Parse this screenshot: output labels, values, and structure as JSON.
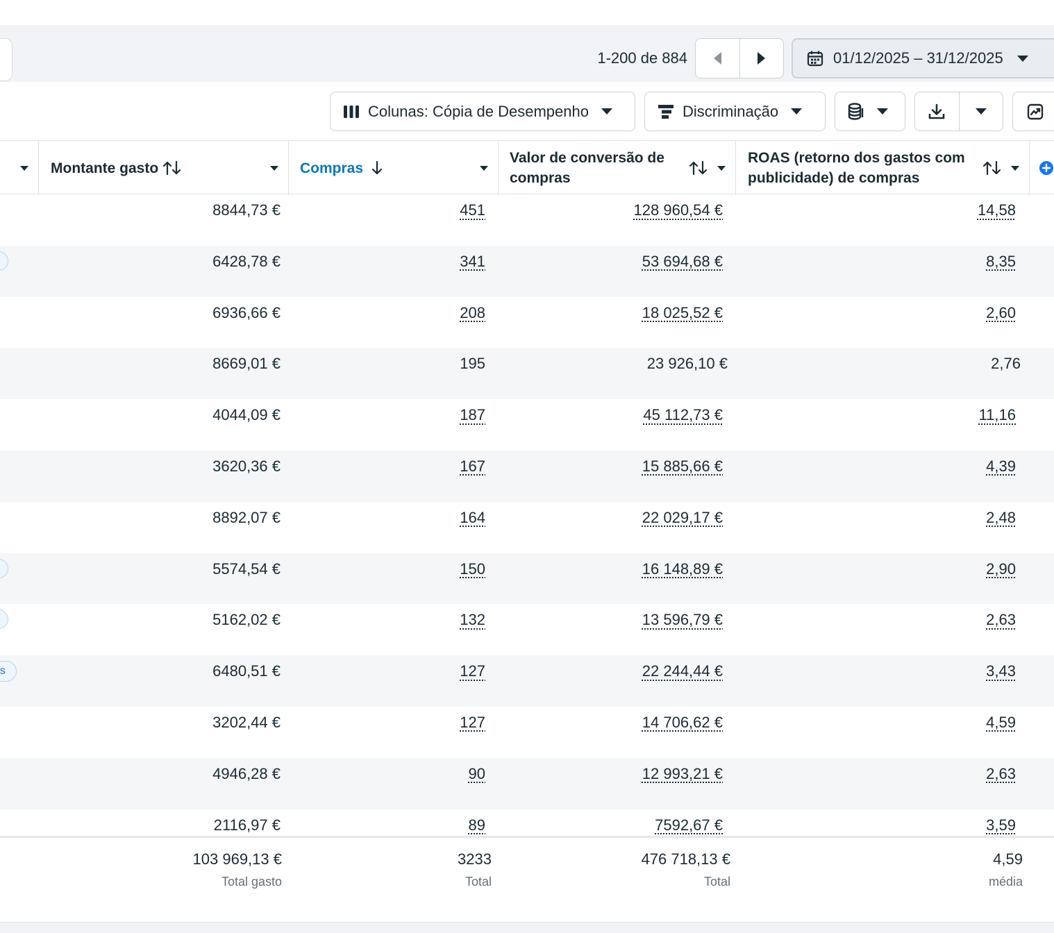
{
  "pager": {
    "range_text": "1-200 de 884"
  },
  "date_range": {
    "label": "01/12/2025 – 31/12/2025"
  },
  "toolbar": {
    "columns_label": "Colunas: Cópia de Desempenho",
    "breakdown_label": "Discriminação"
  },
  "columns": {
    "spend": "Montante gasto",
    "purchases": "Compras",
    "conv_value": "Valor de conversão de compras",
    "roas": "ROAS (retorno dos gastos com publicidade) de compras"
  },
  "accent_color": "#0a78be",
  "rows": [
    {
      "spend": "8844,73 €",
      "purchases": "451",
      "conv_value": "128 960,54 €",
      "roas": "14,58"
    },
    {
      "spend": "6428,78 €",
      "purchases": "341",
      "conv_value": "53 694,68 €",
      "roas": "8,35"
    },
    {
      "spend": "6936,66 €",
      "purchases": "208",
      "conv_value": "18 025,52 €",
      "roas": "2,60"
    },
    {
      "spend": "8669,01 €",
      "purchases": "195",
      "conv_value": "23 926,10 €",
      "roas": "2,76"
    },
    {
      "spend": "4044,09 €",
      "purchases": "187",
      "conv_value": "45 112,73 €",
      "roas": "11,16"
    },
    {
      "spend": "3620,36 €",
      "purchases": "167",
      "conv_value": "15 885,66 €",
      "roas": "4,39"
    },
    {
      "spend": "8892,07 €",
      "purchases": "164",
      "conv_value": "22 029,17 €",
      "roas": "2,48"
    },
    {
      "spend": "5574,54 €",
      "purchases": "150",
      "conv_value": "16 148,89 €",
      "roas": "2,90"
    },
    {
      "spend": "5162,02 €",
      "purchases": "132",
      "conv_value": "13 596,79 €",
      "roas": "2,63"
    },
    {
      "spend": "6480,51 €",
      "purchases": "127",
      "conv_value": "22 244,44 €",
      "roas": "3,43",
      "tag": "es"
    },
    {
      "spend": "3202,44 €",
      "purchases": "127",
      "conv_value": "14 706,62 €",
      "roas": "4,59"
    },
    {
      "spend": "4946,28 €",
      "purchases": "90",
      "conv_value": "12 993,21 €",
      "roas": "2,63"
    },
    {
      "spend": "2116,97 €",
      "purchases": "89",
      "conv_value": "7592,67 €",
      "roas": "3,59"
    }
  ],
  "totals": {
    "spend": "103 969,13 €",
    "spend_label": "Total gasto",
    "purchases": "3233",
    "purchases_label": "Total",
    "conv_value": "476 718,13 €",
    "conv_value_label": "Total",
    "roas": "4,59",
    "roas_label": "média"
  }
}
